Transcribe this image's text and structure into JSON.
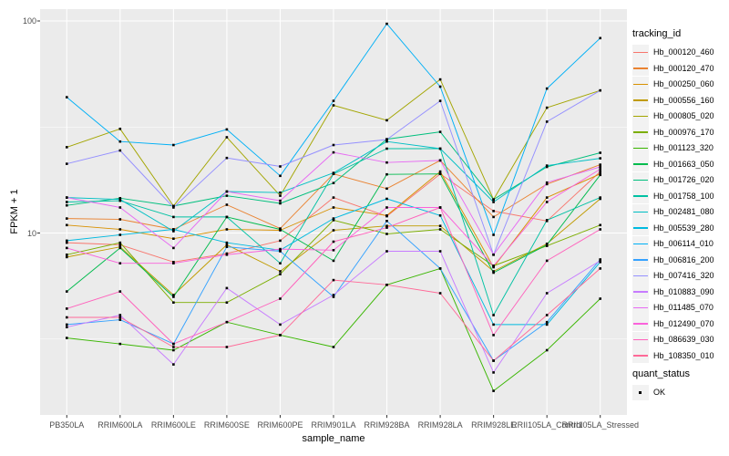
{
  "colors": {
    "panel_bg": "#EBEBEB",
    "grid_major": "#FFFFFF",
    "grid_minor": "#FFFFFF",
    "axis_text": "#4D4D4D",
    "tick_mark": "#333333",
    "legend_key_bg": "#F2F2F2",
    "point": "#000000"
  },
  "legend": {
    "tracking_title": "tracking_id",
    "quant_title": "quant_status",
    "quant_items": [
      {
        "label": "OK",
        "marker": "black-square"
      }
    ]
  },
  "chart_data": {
    "type": "line",
    "title": "",
    "xlabel": "sample_name",
    "ylabel": "FPKM + 1",
    "y_scale": "log10",
    "y_major_ticks": [
      100,
      10
    ],
    "y_minor_gridlines": [
      31.623,
      3.1623
    ],
    "grid": "on",
    "legend_position": "right",
    "point_marker": "black-square",
    "categories": [
      "PB350LA",
      "RRIM600LA",
      "RRIM600LE",
      "RRIM600SE",
      "RRIM600PE",
      "RRIM901LA",
      "RRIM928BA",
      "RRIM928LA",
      "RRIM928LE",
      "RRII105LA_Control",
      "RRII105LA_Stressed"
    ],
    "series": [
      {
        "name": "Hb_000120_460",
        "color": "#F8766D",
        "values": [
          9.0,
          8.8,
          7.3,
          8.0,
          9.2,
          14.7,
          12.0,
          19.0,
          12.7,
          11.4,
          19.5
        ]
      },
      {
        "name": "Hb_000120_470",
        "color": "#EA8331",
        "values": [
          11.7,
          11.6,
          10.4,
          13.6,
          10.5,
          19.0,
          16.2,
          22.0,
          11.9,
          17.0,
          21.0
        ]
      },
      {
        "name": "Hb_000250_060",
        "color": "#D89000",
        "values": [
          10.9,
          10.4,
          9.4,
          10.4,
          10.3,
          13.2,
          12.1,
          19.5,
          6.9,
          14.7,
          19.0
        ]
      },
      {
        "name": "Hb_000556_160",
        "color": "#C09B00",
        "values": [
          7.7,
          8.6,
          5.1,
          8.8,
          6.6,
          10.3,
          10.8,
          10.8,
          6.6,
          8.9,
          14.5
        ]
      },
      {
        "name": "Hb_000805_020",
        "color": "#A3A500",
        "values": [
          25.4,
          31.0,
          13.4,
          28.3,
          15.0,
          40.0,
          34.0,
          53.0,
          14.4,
          39.0,
          47.0
        ]
      },
      {
        "name": "Hb_000976_170",
        "color": "#7CAE00",
        "values": [
          7.9,
          9.0,
          4.7,
          4.7,
          6.4,
          11.5,
          9.9,
          10.4,
          7.0,
          8.7,
          10.9
        ]
      },
      {
        "name": "Hb_001123_320",
        "color": "#39B600",
        "values": [
          3.2,
          3.0,
          2.8,
          3.8,
          3.3,
          2.9,
          5.7,
          6.8,
          1.8,
          2.8,
          4.9
        ]
      },
      {
        "name": "Hb_001663_050",
        "color": "#00BB4E",
        "values": [
          5.3,
          8.5,
          5.0,
          11.9,
          10.4,
          7.4,
          18.9,
          19.0,
          6.5,
          8.8,
          18.8
        ]
      },
      {
        "name": "Hb_001726_020",
        "color": "#00BF7D",
        "values": [
          13.5,
          14.6,
          13.4,
          15.0,
          13.8,
          17.2,
          27.7,
          30.0,
          14.4,
          20.5,
          23.9
        ]
      },
      {
        "name": "Hb_001758_100",
        "color": "#00C1A3",
        "values": [
          14.0,
          14.2,
          11.9,
          11.9,
          7.2,
          19.0,
          25.0,
          25.0,
          4.1,
          11.5,
          14.7
        ]
      },
      {
        "name": "Hb_002481_080",
        "color": "#00BFC4",
        "values": [
          14.7,
          14.4,
          10.2,
          15.7,
          15.5,
          19.2,
          27.0,
          25.0,
          14.0,
          20.8,
          22.5
        ]
      },
      {
        "name": "Hb_005539_280",
        "color": "#00BAE0",
        "values": [
          9.2,
          9.8,
          10.4,
          9.0,
          8.3,
          11.7,
          14.5,
          12.1,
          3.7,
          3.7,
          7.3
        ]
      },
      {
        "name": "Hb_006114_010",
        "color": "#00B0F6",
        "values": [
          43.7,
          27.0,
          26.0,
          30.8,
          18.6,
          42.0,
          97.0,
          49.0,
          9.8,
          48.0,
          83.0
        ]
      },
      {
        "name": "Hb_006816_200",
        "color": "#35A2FF",
        "values": [
          3.7,
          3.9,
          3.0,
          8.6,
          8.2,
          5.0,
          11.4,
          6.8,
          2.5,
          3.8,
          7.5
        ]
      },
      {
        "name": "Hb_007416_320",
        "color": "#9590FF",
        "values": [
          21.2,
          24.5,
          13.2,
          22.6,
          20.6,
          26.0,
          27.6,
          42.0,
          7.9,
          33.5,
          47.0
        ]
      },
      {
        "name": "Hb_010883_090",
        "color": "#C77CFF",
        "values": [
          3.6,
          4.1,
          2.4,
          5.5,
          3.7,
          5.1,
          8.2,
          8.2,
          2.2,
          5.2,
          7.4
        ]
      },
      {
        "name": "Hb_011485_070",
        "color": "#E76BF3",
        "values": [
          14.7,
          13.2,
          8.5,
          15.7,
          14.2,
          24.0,
          21.5,
          22.0,
          7.9,
          17.3,
          20.5
        ]
      },
      {
        "name": "Hb_012490_070",
        "color": "#FA62DB",
        "values": [
          8.5,
          7.2,
          7.2,
          7.9,
          8.4,
          8.3,
          13.2,
          13.2,
          7.0,
          14.0,
          20.0
        ]
      },
      {
        "name": "Hb_086639_030",
        "color": "#FF62BC",
        "values": [
          4.4,
          5.3,
          3.0,
          3.8,
          4.9,
          9.1,
          10.6,
          13.2,
          3.3,
          7.4,
          10.4
        ]
      },
      {
        "name": "Hb_108350_010",
        "color": "#FF6A98",
        "values": [
          4.0,
          4.0,
          2.9,
          2.9,
          3.3,
          6.0,
          5.7,
          5.2,
          2.5,
          4.1,
          6.8
        ]
      }
    ]
  }
}
